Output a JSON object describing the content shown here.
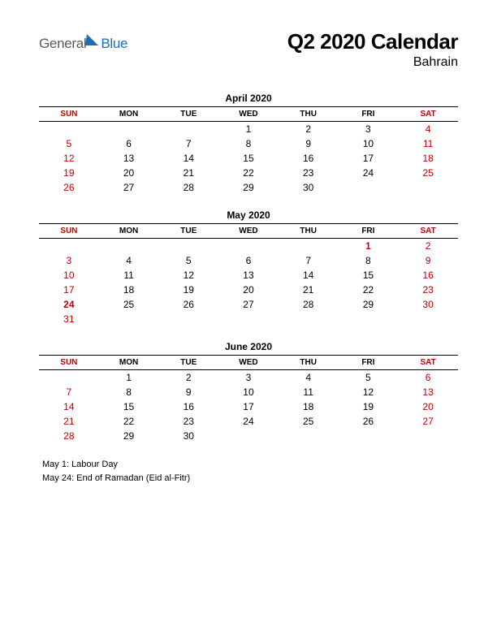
{
  "logo": {
    "text1": "General",
    "text2": "Blue"
  },
  "title": "Q2 2020 Calendar",
  "subtitle": "Bahrain",
  "day_headers": [
    "SUN",
    "MON",
    "TUE",
    "WED",
    "THU",
    "FRI",
    "SAT"
  ],
  "weekend_color": "#c00000",
  "text_color": "#000000",
  "border_color": "#000000",
  "background_color": "#ffffff",
  "months": [
    {
      "name": "April 2020",
      "weeks": [
        [
          null,
          null,
          null,
          {
            "d": 1
          },
          {
            "d": 2
          },
          {
            "d": 3
          },
          {
            "d": 4,
            "w": true
          }
        ],
        [
          {
            "d": 5,
            "w": true
          },
          {
            "d": 6
          },
          {
            "d": 7
          },
          {
            "d": 8
          },
          {
            "d": 9
          },
          {
            "d": 10
          },
          {
            "d": 11,
            "w": true
          }
        ],
        [
          {
            "d": 12,
            "w": true
          },
          {
            "d": 13
          },
          {
            "d": 14
          },
          {
            "d": 15
          },
          {
            "d": 16
          },
          {
            "d": 17
          },
          {
            "d": 18,
            "w": true
          }
        ],
        [
          {
            "d": 19,
            "w": true
          },
          {
            "d": 20
          },
          {
            "d": 21
          },
          {
            "d": 22
          },
          {
            "d": 23
          },
          {
            "d": 24
          },
          {
            "d": 25,
            "w": true
          }
        ],
        [
          {
            "d": 26,
            "w": true
          },
          {
            "d": 27
          },
          {
            "d": 28
          },
          {
            "d": 29
          },
          {
            "d": 30
          },
          null,
          null
        ]
      ]
    },
    {
      "name": "May 2020",
      "weeks": [
        [
          null,
          null,
          null,
          null,
          null,
          {
            "d": 1,
            "h": true
          },
          {
            "d": 2,
            "w": true
          }
        ],
        [
          {
            "d": 3,
            "w": true
          },
          {
            "d": 4
          },
          {
            "d": 5
          },
          {
            "d": 6
          },
          {
            "d": 7
          },
          {
            "d": 8
          },
          {
            "d": 9,
            "w": true
          }
        ],
        [
          {
            "d": 10,
            "w": true
          },
          {
            "d": 11
          },
          {
            "d": 12
          },
          {
            "d": 13
          },
          {
            "d": 14
          },
          {
            "d": 15
          },
          {
            "d": 16,
            "w": true
          }
        ],
        [
          {
            "d": 17,
            "w": true
          },
          {
            "d": 18
          },
          {
            "d": 19
          },
          {
            "d": 20
          },
          {
            "d": 21
          },
          {
            "d": 22
          },
          {
            "d": 23,
            "w": true
          }
        ],
        [
          {
            "d": 24,
            "h": true
          },
          {
            "d": 25
          },
          {
            "d": 26
          },
          {
            "d": 27
          },
          {
            "d": 28
          },
          {
            "d": 29
          },
          {
            "d": 30,
            "w": true
          }
        ],
        [
          {
            "d": 31,
            "w": true
          },
          null,
          null,
          null,
          null,
          null,
          null
        ]
      ]
    },
    {
      "name": "June 2020",
      "weeks": [
        [
          null,
          {
            "d": 1
          },
          {
            "d": 2
          },
          {
            "d": 3
          },
          {
            "d": 4
          },
          {
            "d": 5
          },
          {
            "d": 6,
            "w": true
          }
        ],
        [
          {
            "d": 7,
            "w": true
          },
          {
            "d": 8
          },
          {
            "d": 9
          },
          {
            "d": 10
          },
          {
            "d": 11
          },
          {
            "d": 12
          },
          {
            "d": 13,
            "w": true
          }
        ],
        [
          {
            "d": 14,
            "w": true
          },
          {
            "d": 15
          },
          {
            "d": 16
          },
          {
            "d": 17
          },
          {
            "d": 18
          },
          {
            "d": 19
          },
          {
            "d": 20,
            "w": true
          }
        ],
        [
          {
            "d": 21,
            "w": true
          },
          {
            "d": 22
          },
          {
            "d": 23
          },
          {
            "d": 24
          },
          {
            "d": 25
          },
          {
            "d": 26
          },
          {
            "d": 27,
            "w": true
          }
        ],
        [
          {
            "d": 28,
            "w": true
          },
          {
            "d": 29
          },
          {
            "d": 30
          },
          null,
          null,
          null,
          null
        ]
      ]
    }
  ],
  "holidays": [
    "May 1: Labour Day",
    "May 24: End of Ramadan (Eid al-Fitr)"
  ]
}
